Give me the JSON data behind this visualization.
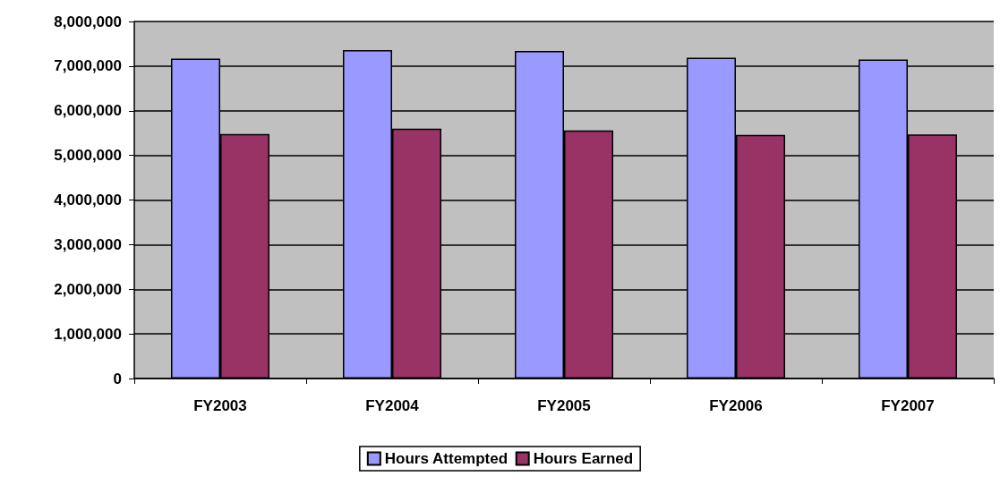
{
  "chart_data": {
    "type": "bar",
    "categories": [
      "FY2003",
      "FY2004",
      "FY2005",
      "FY2006",
      "FY2007"
    ],
    "series": [
      {
        "name": "Hours Attempted",
        "color": "#9999ff",
        "values": [
          7170000,
          7360000,
          7340000,
          7190000,
          7150000
        ]
      },
      {
        "name": "Hours Earned",
        "color": "#993366",
        "values": [
          5480000,
          5600000,
          5560000,
          5460000,
          5470000
        ]
      }
    ],
    "ylim": [
      0,
      8000000
    ],
    "yticks": [
      0,
      {
        "value": 1000000,
        "label": "1,000,000"
      },
      {
        "value": 2000000,
        "label": "2,000,000"
      },
      {
        "value": 3000000,
        "label": "3,000,000"
      },
      {
        "value": 4000000,
        "label": "4,000,000"
      },
      {
        "value": 5000000,
        "label": "5,000,000"
      },
      {
        "value": 6000000,
        "label": "6,000,000"
      },
      {
        "value": 7000000,
        "label": "7,000,000"
      },
      {
        "value": 8000000,
        "label": "8,000,000"
      }
    ],
    "grid": "y",
    "legend": "bottom"
  }
}
